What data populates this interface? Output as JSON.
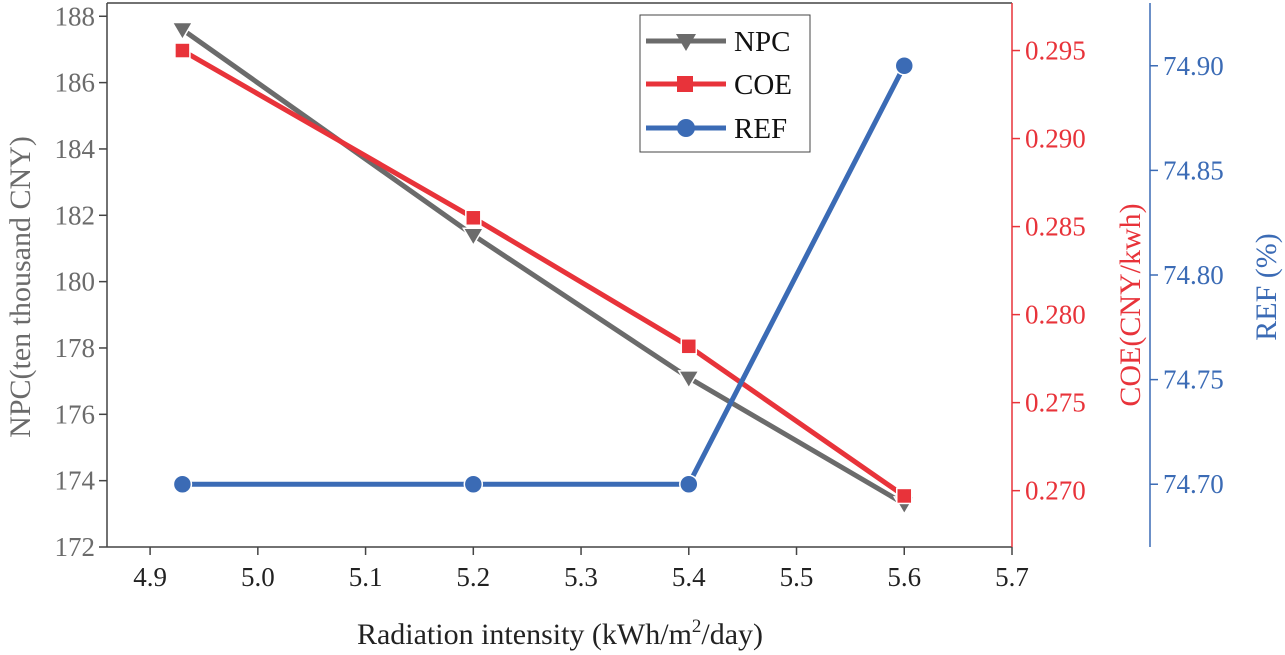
{
  "chart_data": {
    "type": "line",
    "x": [
      4.93,
      5.2,
      5.4,
      5.6
    ],
    "xlabel": "Radiation intensity (kWh/m",
    "xlabel_sup": "2",
    "xlabel_suffix": "/day)",
    "xlim": [
      4.86,
      5.7
    ],
    "xticks": [
      4.9,
      5.0,
      5.1,
      5.2,
      5.3,
      5.4,
      5.5,
      5.6,
      5.7
    ],
    "xtick_labels": [
      "4.9",
      "5.0",
      "5.1",
      "5.2",
      "5.3",
      "5.4",
      "5.5",
      "5.6",
      "5.7"
    ],
    "axes": {
      "left": {
        "label": "NPC(ten thousand CNY)",
        "ylim": [
          172,
          188.4
        ],
        "ticks": [
          172,
          174,
          176,
          178,
          180,
          182,
          184,
          186,
          188
        ],
        "tick_labels": [
          "172",
          "174",
          "176",
          "178",
          "180",
          "182",
          "184",
          "186",
          "188"
        ],
        "color": "#6b6b6b"
      },
      "right1": {
        "label": "COE(CNY/kwh)",
        "ylim": [
          0.2668,
          0.2977
        ],
        "ticks": [
          0.27,
          0.275,
          0.28,
          0.285,
          0.29,
          0.295
        ],
        "tick_labels": [
          "0.270",
          "0.275",
          "0.280",
          "0.285",
          "0.290",
          "0.295"
        ],
        "color": "#e8333a"
      },
      "right2": {
        "label": "REF (%)",
        "ylim": [
          74.67,
          74.93
        ],
        "ticks": [
          74.7,
          74.75,
          74.8,
          74.85,
          74.9
        ],
        "tick_labels": [
          "74.70",
          "74.75",
          "74.80",
          "74.85",
          "74.90"
        ],
        "color": "#3b6bb5"
      }
    },
    "series": [
      {
        "name": "NPC",
        "axis": "left",
        "color": "#6b6b6b",
        "marker": "triangle-down",
        "values": [
          187.6,
          181.4,
          177.1,
          173.3
        ]
      },
      {
        "name": "COE",
        "axis": "right1",
        "color": "#e8333a",
        "marker": "square",
        "values": [
          0.295,
          0.2855,
          0.2782,
          0.2697
        ]
      },
      {
        "name": "REF",
        "axis": "right2",
        "color": "#3b6bb5",
        "marker": "circle",
        "values": [
          74.7,
          74.7,
          74.7,
          74.9
        ]
      }
    ],
    "legend": [
      "NPC",
      "COE",
      "REF"
    ],
    "legend_position": "top-right"
  }
}
